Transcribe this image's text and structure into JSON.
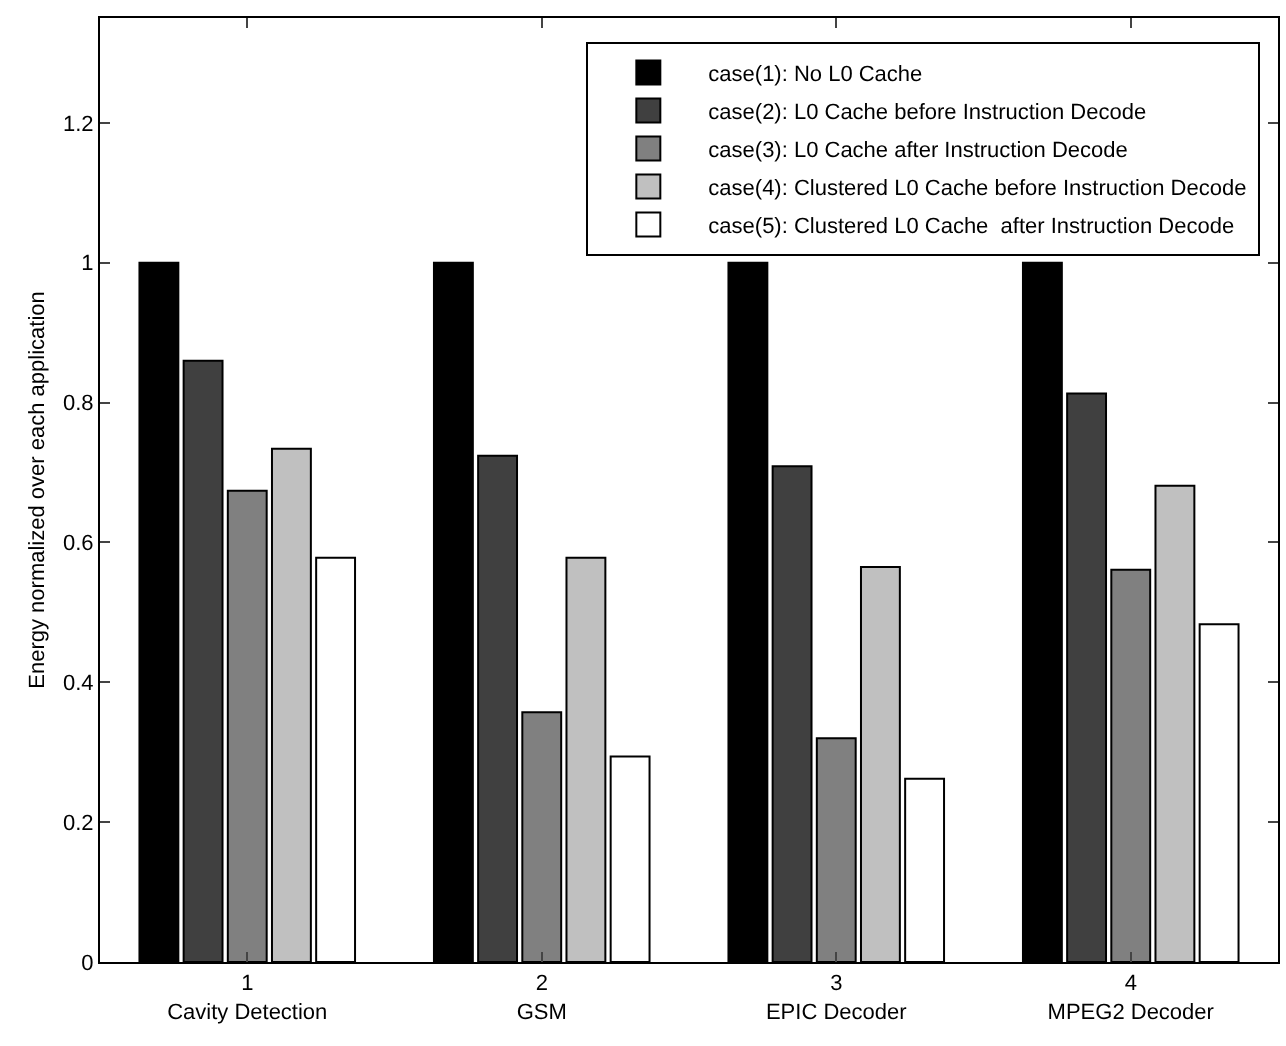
{
  "chart_data": {
    "type": "bar",
    "ylabel": "Energy normalized over each application",
    "categories": [
      "1\nCavity Detection",
      "2\nGSM",
      "3\nEPIC Decoder",
      "4\nMPEG2 Decoder"
    ],
    "series": [
      {
        "name": "case(1): No L0 Cache",
        "color": "#000000",
        "values": [
          1,
          1,
          1,
          1
        ]
      },
      {
        "name": "case(2): L0 Cache before Instruction Decode",
        "color": "#404040",
        "values": [
          0.86,
          0.724,
          0.709,
          0.813
        ]
      },
      {
        "name": "case(3): L0 Cache after Instruction Decode",
        "color": "#808080",
        "values": [
          0.674,
          0.357,
          0.32,
          0.561
        ]
      },
      {
        "name": "case(4): Clustered L0 Cache before Instruction Decode",
        "color": "#c0c0c0",
        "values": [
          0.734,
          0.578,
          0.565,
          0.681
        ]
      },
      {
        "name": "case(5): Clustered L0 Cache  after Instruction Decode",
        "color": "#ffffff",
        "values": [
          0.578,
          0.294,
          0.262,
          0.483
        ]
      }
    ],
    "ylim": [
      0,
      1.35
    ],
    "yticks": [
      0,
      0.2,
      0.4,
      0.6,
      0.8,
      1,
      1.2
    ],
    "legend": "top right"
  }
}
